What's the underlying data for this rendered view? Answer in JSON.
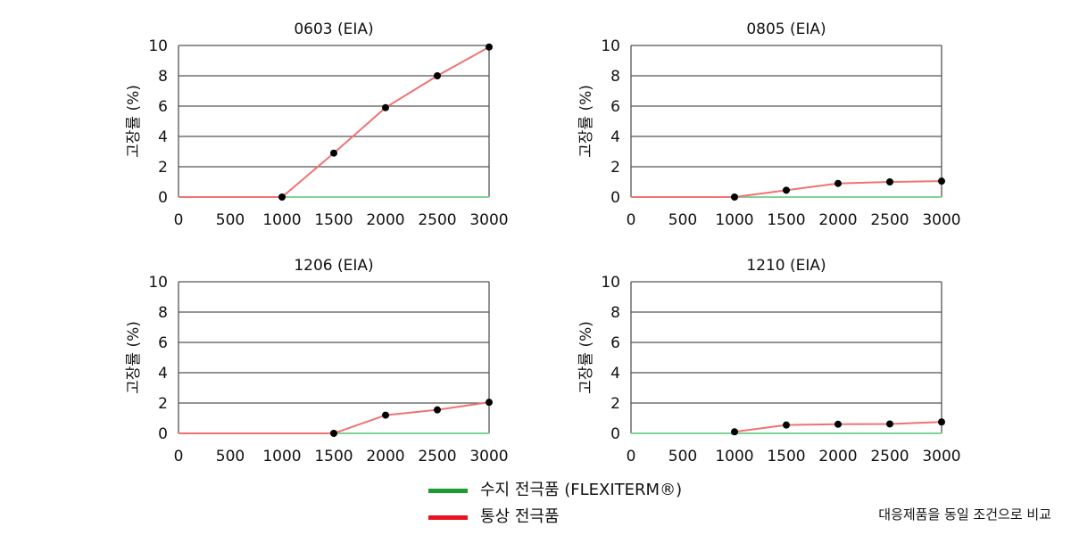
{
  "colors": {
    "resin_series": "#7fd49a",
    "standard_series": "#f07272",
    "resin_legend": "#1e9a32",
    "standard_legend": "#e6141e",
    "marker": "#000000",
    "grid": "#555555"
  },
  "legend": {
    "items": [
      {
        "label": "수지 전극품 (FLEXITERM®)",
        "color": "#1e9a32"
      },
      {
        "label": "통상 전극품",
        "color": "#e6141e"
      }
    ]
  },
  "footnote": "대응제품을 동일 조건으로 비교",
  "chart_data": [
    {
      "type": "line",
      "title": "0603 (EIA)",
      "ylabel": "고장률 (%)",
      "xlim": [
        0,
        3000
      ],
      "ylim": [
        0,
        10
      ],
      "xticks": [
        "0",
        "500",
        "1000",
        "1500",
        "2000",
        "2500",
        "3000"
      ],
      "yticks": [
        "0",
        "2",
        "4",
        "6",
        "8",
        "10"
      ],
      "grid": "horizontal",
      "series": [
        {
          "color": "#7fd49a",
          "markers": false,
          "x": [
            0,
            3000
          ],
          "y": [
            0,
            0
          ]
        },
        {
          "color": "#f07272",
          "markers_from_x": 1000,
          "x": [
            0,
            1000,
            1500,
            2000,
            2500,
            3000
          ],
          "y": [
            0,
            0,
            2.9,
            5.9,
            8.0,
            9.9
          ]
        }
      ]
    },
    {
      "type": "line",
      "title": "0805 (EIA)",
      "ylabel": "고장률 (%)",
      "xlim": [
        0,
        3000
      ],
      "ylim": [
        0,
        10
      ],
      "xticks": [
        "0",
        "500",
        "1000",
        "1500",
        "2000",
        "2500",
        "3000"
      ],
      "yticks": [
        "0",
        "2",
        "4",
        "6",
        "8",
        "10"
      ],
      "grid": "horizontal",
      "series": [
        {
          "color": "#7fd49a",
          "markers": false,
          "x": [
            0,
            3000
          ],
          "y": [
            0,
            0
          ]
        },
        {
          "color": "#f07272",
          "markers_from_x": 1000,
          "x": [
            0,
            1000,
            1500,
            2000,
            2500,
            3000
          ],
          "y": [
            0,
            0,
            0.45,
            0.9,
            1.0,
            1.05
          ]
        }
      ]
    },
    {
      "type": "line",
      "title": "1206 (EIA)",
      "ylabel": "고장률 (%)",
      "xlim": [
        0,
        3000
      ],
      "ylim": [
        0,
        10
      ],
      "xticks": [
        "0",
        "500",
        "1000",
        "1500",
        "2000",
        "2500",
        "3000"
      ],
      "yticks": [
        "0",
        "2",
        "4",
        "6",
        "8",
        "10"
      ],
      "grid": "horizontal",
      "series": [
        {
          "color": "#7fd49a",
          "markers": false,
          "x": [
            0,
            3000
          ],
          "y": [
            0,
            0
          ]
        },
        {
          "color": "#f07272",
          "markers_from_x": 1500,
          "x": [
            0,
            1500,
            2000,
            2500,
            3000
          ],
          "y": [
            0,
            0,
            1.2,
            1.55,
            2.05
          ]
        }
      ]
    },
    {
      "type": "line",
      "title": "1210 (EIA)",
      "ylabel": "고장률 (%)",
      "xlim": [
        0,
        3000
      ],
      "ylim": [
        0,
        10
      ],
      "xticks": [
        "0",
        "500",
        "1000",
        "1500",
        "2000",
        "2500",
        "3000"
      ],
      "yticks": [
        "0",
        "2",
        "4",
        "6",
        "8",
        "10"
      ],
      "grid": "horizontal",
      "series": [
        {
          "color": "#7fd49a",
          "markers": false,
          "x": [
            0,
            3000
          ],
          "y": [
            0,
            0
          ]
        },
        {
          "color": "#f07272",
          "markers_from_x": 1000,
          "x": [
            1000,
            1500,
            2000,
            2500,
            3000
          ],
          "y": [
            0.1,
            0.55,
            0.6,
            0.62,
            0.75
          ]
        }
      ]
    }
  ]
}
